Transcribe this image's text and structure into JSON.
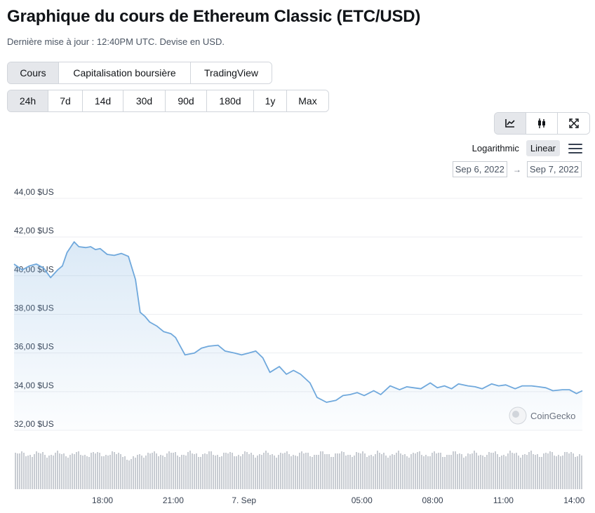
{
  "header": {
    "title": "Graphique du cours de Ethereum Classic (ETC/USD)",
    "subtitle": "Dernière mise à jour : 12:40PM UTC. Devise en USD."
  },
  "type_tabs": [
    {
      "label": "Cours",
      "active": true
    },
    {
      "label": "Capitalisation boursière",
      "active": false
    },
    {
      "label": "TradingView",
      "active": false
    }
  ],
  "range_tabs": [
    {
      "label": "24h",
      "active": true
    },
    {
      "label": "7d",
      "active": false
    },
    {
      "label": "14d",
      "active": false
    },
    {
      "label": "30d",
      "active": false
    },
    {
      "label": "90d",
      "active": false
    },
    {
      "label": "180d",
      "active": false
    },
    {
      "label": "1y",
      "active": false
    },
    {
      "label": "Max",
      "active": false
    }
  ],
  "view_tabs": [
    {
      "icon": "line-chart-icon",
      "active": true
    },
    {
      "icon": "candlestick-icon",
      "active": false
    },
    {
      "icon": "fullscreen-icon",
      "active": false
    }
  ],
  "scale": {
    "logarithmic": "Logarithmic",
    "linear": "Linear",
    "active": "Linear"
  },
  "date_range": {
    "from": "Sep 6, 2022",
    "to": "Sep 7, 2022",
    "arrow": "→"
  },
  "watermark": "CoinGecko",
  "colors": {
    "line": "#6fa8dc",
    "volume": "#c8ccd2",
    "grid": "#eceef1",
    "active_tab": "#e5e7eb"
  },
  "chart_data": {
    "type": "area",
    "currency": "USD",
    "ylim": [
      32,
      44
    ],
    "y_ticks": [
      44,
      42,
      40,
      38,
      36,
      34,
      32
    ],
    "y_tick_labels": [
      "44,00 $US",
      "42,00 $US",
      "40,00 $US",
      "38,00 $US",
      "36,00 $US",
      "34,00 $US",
      "32,00 $US"
    ],
    "x_tick_labels": [
      "18:00",
      "21:00",
      "7. Sep",
      "05:00",
      "08:00",
      "11:00",
      "14:00"
    ],
    "x_tick_hours": [
      18,
      21,
      24,
      29,
      32,
      35,
      38
    ],
    "x_range_hours": [
      14.25,
      38.35
    ],
    "x_hours": [
      14.25,
      14.6,
      14.9,
      15.2,
      15.5,
      15.8,
      16.1,
      16.3,
      16.5,
      16.8,
      17.0,
      17.3,
      17.5,
      17.7,
      17.9,
      18.2,
      18.5,
      18.8,
      19.1,
      19.4,
      19.6,
      19.8,
      20.0,
      20.3,
      20.6,
      20.9,
      21.1,
      21.5,
      21.9,
      22.2,
      22.5,
      22.9,
      23.2,
      23.6,
      23.9,
      24.2,
      24.5,
      24.8,
      25.1,
      25.5,
      25.8,
      26.1,
      26.4,
      26.8,
      27.1,
      27.5,
      27.9,
      28.2,
      28.5,
      28.8,
      29.1,
      29.5,
      29.8,
      30.2,
      30.6,
      30.9,
      31.2,
      31.5,
      31.9,
      32.2,
      32.5,
      32.8,
      33.1,
      33.5,
      33.8,
      34.1,
      34.5,
      34.8,
      35.1,
      35.5,
      35.8,
      36.2,
      36.5,
      36.8,
      37.1,
      37.5,
      37.8,
      38.1,
      38.35
    ],
    "prices": [
      40.6,
      40.3,
      40.5,
      40.6,
      40.4,
      39.9,
      40.3,
      40.5,
      41.2,
      41.75,
      41.5,
      41.45,
      41.5,
      41.35,
      41.4,
      41.1,
      41.05,
      41.15,
      41.0,
      39.8,
      38.1,
      37.9,
      37.6,
      37.4,
      37.1,
      37.0,
      36.8,
      35.9,
      36.0,
      36.25,
      36.35,
      36.4,
      36.1,
      36.0,
      35.9,
      36.0,
      36.1,
      35.75,
      35.0,
      35.3,
      34.9,
      35.1,
      34.9,
      34.45,
      33.7,
      33.45,
      33.55,
      33.8,
      33.85,
      33.95,
      33.8,
      34.05,
      33.85,
      34.3,
      34.1,
      34.25,
      34.2,
      34.15,
      34.45,
      34.2,
      34.3,
      34.15,
      34.4,
      34.3,
      34.25,
      34.15,
      34.4,
      34.3,
      34.35,
      34.15,
      34.3,
      34.3,
      34.25,
      34.2,
      34.05,
      34.1,
      34.1,
      33.9,
      34.05
    ]
  }
}
